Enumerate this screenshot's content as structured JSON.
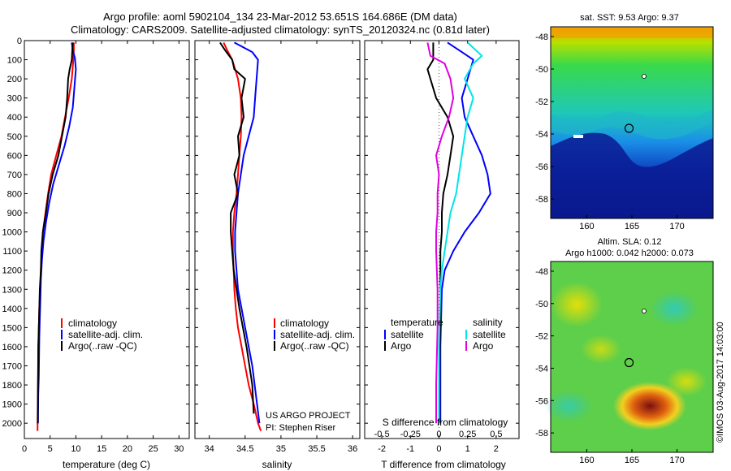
{
  "header": {
    "line1": "Argo profile: aoml 5902104_134 23-Mar-2012 53.651S 164.686E (DM data)",
    "line2": "Climatology: CARS2009. Satellite-adjusted climatology: synTS_20120324.nc (0.81d later)"
  },
  "colors": {
    "climatology": "#ff0000",
    "satellite": "#0000ff",
    "argo": "#000000",
    "sat_s": "#00e5e5",
    "argo_s": "#e000e0"
  },
  "chart_data": [
    {
      "type": "line",
      "xlabel": "temperature (deg C)",
      "ylabel": "",
      "xlim": [
        0,
        32
      ],
      "ylim": [
        2080,
        0
      ],
      "xticks": [
        "0",
        "5",
        "10",
        "15",
        "20",
        "25",
        "30"
      ],
      "yticks": [
        "0",
        "100",
        "200",
        "300",
        "400",
        "500",
        "600",
        "700",
        "800",
        "900",
        "1000",
        "1100",
        "1200",
        "1300",
        "1400",
        "1500",
        "1600",
        "1700",
        "1800",
        "1900",
        "2000"
      ],
      "legend": [
        "climatology",
        "satellite-adj. clim.",
        "Argo(..raw -QC)"
      ],
      "series": [
        {
          "name": "climatology",
          "x": [
            9.6,
            9.6,
            9.5,
            9.2,
            8.6,
            7.9,
            7.2,
            6.2,
            5.2,
            4.6,
            4.1,
            3.6,
            3.4,
            3.2,
            3.1,
            2.9,
            2.8,
            2.75,
            2.7,
            2.65,
            2.6,
            2.55
          ],
          "y": [
            10,
            50,
            100,
            200,
            300,
            400,
            500,
            600,
            700,
            800,
            900,
            1000,
            1100,
            1200,
            1300,
            1400,
            1500,
            1600,
            1700,
            1800,
            1900,
            2040
          ]
        },
        {
          "name": "satellite-adj. clim.",
          "x": [
            9.2,
            9.4,
            9.8,
            10.0,
            9.7,
            9.4,
            8.7,
            7.8,
            6.7,
            5.6,
            4.8,
            4.2,
            3.7,
            3.4,
            3.2,
            3.1,
            3.0,
            2.9,
            2.85,
            2.8,
            2.7,
            2.65
          ],
          "y": [
            10,
            50,
            90,
            150,
            250,
            350,
            450,
            550,
            650,
            750,
            850,
            950,
            1050,
            1150,
            1250,
            1350,
            1450,
            1550,
            1650,
            1750,
            1850,
            2000
          ]
        },
        {
          "name": "Argo(..raw -QC)",
          "x": [
            9.4,
            9.3,
            9.2,
            8.8,
            8.5,
            8.3,
            8.0,
            7.3,
            6.6,
            5.5,
            4.7,
            4.2,
            3.6,
            3.3,
            3.2,
            3.0,
            2.9,
            2.8,
            2.7,
            2.65,
            2.6
          ],
          "y": [
            10,
            50,
            100,
            150,
            200,
            300,
            400,
            500,
            600,
            700,
            800,
            900,
            1000,
            1100,
            1200,
            1300,
            1400,
            1500,
            1600,
            1800,
            2000
          ]
        }
      ]
    },
    {
      "type": "line",
      "xlabel": "salinity",
      "ylabel": "",
      "xlim": [
        33.8,
        36.1
      ],
      "ylim": [
        2080,
        0
      ],
      "xticks": [
        "34",
        "34.5",
        "35",
        "35.5",
        "36"
      ],
      "legend": [
        "climatology",
        "satellite-adj. clim.",
        "Argo(..raw -QC)"
      ],
      "series": [
        {
          "name": "climatology",
          "x": [
            34.2,
            34.25,
            34.32,
            34.4,
            34.44,
            34.45,
            34.44,
            34.42,
            34.4,
            34.38,
            34.35,
            34.33,
            34.33,
            34.34,
            34.35,
            34.37,
            34.4,
            34.45,
            34.5,
            34.55,
            34.62,
            34.68,
            34.72
          ],
          "y": [
            10,
            50,
            100,
            200,
            300,
            400,
            500,
            600,
            700,
            800,
            900,
            1000,
            1100,
            1200,
            1300,
            1400,
            1500,
            1600,
            1700,
            1800,
            1900,
            2000,
            2040
          ]
        },
        {
          "name": "satellite-adj. clim.",
          "x": [
            34.35,
            34.6,
            34.68,
            34.66,
            34.64,
            34.62,
            34.55,
            34.48,
            34.44,
            34.4,
            34.38,
            34.36,
            34.36,
            34.38,
            34.4,
            34.45,
            34.5,
            34.55,
            34.6,
            34.65,
            34.7
          ],
          "y": [
            10,
            60,
            100,
            200,
            300,
            400,
            500,
            600,
            700,
            800,
            900,
            1000,
            1100,
            1200,
            1300,
            1400,
            1500,
            1600,
            1700,
            1850,
            2000
          ]
        },
        {
          "name": "Argo(..raw -QC)",
          "x": [
            34.15,
            34.22,
            34.32,
            34.35,
            34.5,
            34.45,
            34.48,
            34.4,
            34.42,
            34.35,
            34.4,
            34.3,
            34.3,
            34.32,
            34.34,
            34.38,
            34.42,
            34.47,
            34.52,
            34.56,
            34.6,
            34.62
          ],
          "y": [
            10,
            50,
            100,
            150,
            200,
            300,
            400,
            500,
            600,
            700,
            800,
            900,
            1000,
            1100,
            1200,
            1300,
            1400,
            1500,
            1600,
            1700,
            1800,
            1950
          ]
        }
      ]
    },
    {
      "type": "line",
      "xlabel": "T difference from climatology",
      "xlabel_top": "S difference from climatology",
      "xlim": [
        -2.6,
        2.8
      ],
      "ylim": [
        2080,
        0
      ],
      "xticks": [
        "-2",
        "-1",
        "0",
        "1",
        "2"
      ],
      "xticks_top": [
        "-0.5",
        "-0.25",
        "0",
        "0.25",
        "0.5"
      ],
      "legend_groups": [
        {
          "title": "temperature",
          "items": [
            "satellite",
            "Argo"
          ]
        },
        {
          "title": "salinity",
          "items": [
            "satellite",
            "Argo"
          ]
        }
      ],
      "series": [
        {
          "name": "satellite",
          "group": "temperature",
          "x": [
            0.3,
            0.8,
            1.2,
            1.0,
            0.8,
            0.9,
            1.2,
            1.5,
            1.7,
            1.8,
            1.4,
            0.9,
            0.5,
            0.2,
            0.1,
            0.05,
            0.05
          ],
          "y": [
            10,
            60,
            100,
            200,
            300,
            400,
            500,
            600,
            700,
            800,
            900,
            1000,
            1100,
            1200,
            1300,
            1600,
            2000
          ]
        },
        {
          "name": "Argo",
          "group": "temperature",
          "x": [
            -0.2,
            -0.2,
            -0.2,
            -0.4,
            -0.3,
            -0.1,
            0.3,
            0.5,
            0.4,
            0.3,
            0.15,
            0.1,
            0.1,
            0.05,
            0.05,
            0.05,
            0.02,
            0.02
          ],
          "y": [
            10,
            50,
            100,
            150,
            200,
            300,
            400,
            500,
            600,
            700,
            800,
            900,
            1000,
            1100,
            1200,
            1400,
            1700,
            2000
          ]
        },
        {
          "name": "satellite",
          "group": "salinity",
          "x": [
            1.0,
            1.5,
            1.2,
            0.9,
            1.2,
            1.0,
            0.9,
            0.8,
            0.7,
            0.6,
            0.4,
            0.3,
            0.2,
            0.1,
            0.05,
            0.0,
            0.0
          ],
          "y": [
            10,
            80,
            120,
            200,
            300,
            400,
            500,
            600,
            700,
            800,
            900,
            1000,
            1100,
            1200,
            1300,
            1600,
            2000
          ]
        },
        {
          "name": "Argo",
          "group": "salinity",
          "x": [
            -0.4,
            -0.3,
            0.2,
            0.4,
            0.5,
            0.35,
            0.1,
            -0.1,
            0.0,
            -0.05,
            -0.05,
            -0.1,
            -0.1,
            -0.05,
            -0.05,
            -0.1,
            -0.1
          ],
          "y": [
            10,
            80,
            120,
            200,
            300,
            400,
            500,
            600,
            700,
            800,
            900,
            1000,
            1100,
            1300,
            1500,
            1800,
            2000
          ]
        }
      ]
    },
    {
      "type": "heatmap",
      "title": "sat. SST: 9.53 Argo: 9.37",
      "xlim": [
        156,
        174
      ],
      "ylim": [
        -59.2,
        -47.4
      ],
      "xticks": [
        "160",
        "165",
        "170"
      ],
      "yticks": [
        "-48",
        "-50",
        "-52",
        "-54",
        "-56",
        "-58"
      ],
      "argo_position": [
        164.686,
        -53.651
      ]
    },
    {
      "type": "heatmap",
      "title": "Altim. SLA: 0.12",
      "subtitle": "Argo h1000: 0.042 h2000: 0.073",
      "xlim": [
        156,
        174
      ],
      "ylim": [
        -59.2,
        -47.4
      ],
      "xticks": [
        "160",
        "165",
        "170"
      ],
      "yticks": [
        "-48",
        "-50",
        "-52",
        "-54",
        "-56",
        "-58"
      ],
      "argo_position": [
        164.686,
        -53.651
      ]
    }
  ],
  "annotations": {
    "project_line1": "US ARGO PROJECT",
    "project_line2": "PI: Stephen Riser",
    "imos_stamp": "©IMOS 03-Aug-2017 14:03:00"
  }
}
